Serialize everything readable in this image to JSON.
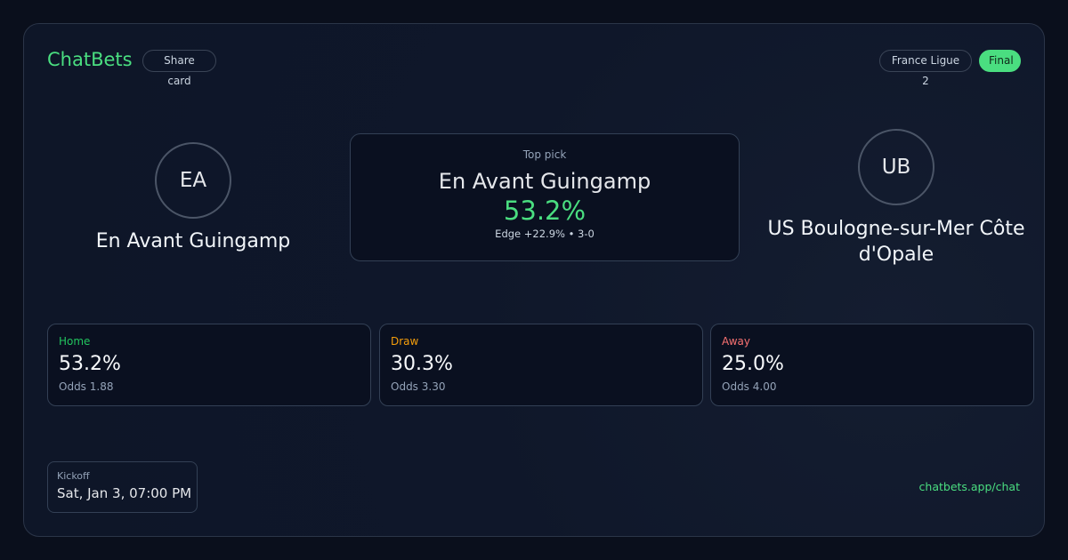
{
  "brand": "ChatBets",
  "share_label": "Share card",
  "league": "France Ligue 2",
  "status": "Final",
  "home": {
    "initials": "EA",
    "name": "En Avant Guingamp"
  },
  "away": {
    "initials": "UB",
    "name": "US Boulogne-sur-Mer Côte d'Opale"
  },
  "top_pick": {
    "label": "Top pick",
    "team": "En Avant Guingamp",
    "prob": "53.2%",
    "detail": "Edge +22.9% • 3-0"
  },
  "stats": [
    {
      "label": "Home",
      "value": "53.2%",
      "odds": "Odds 1.88",
      "color": "#22c55e"
    },
    {
      "label": "Draw",
      "value": "30.3%",
      "odds": "Odds 3.30",
      "color": "#f59e0b"
    },
    {
      "label": "Away",
      "value": "25.0%",
      "odds": "Odds 4.00",
      "color": "#f87171"
    }
  ],
  "kickoff": {
    "label": "Kickoff",
    "value": "Sat, Jan 3, 07:00 PM"
  },
  "footer_link": "chatbets.app/chat",
  "accent": "#4ade80"
}
